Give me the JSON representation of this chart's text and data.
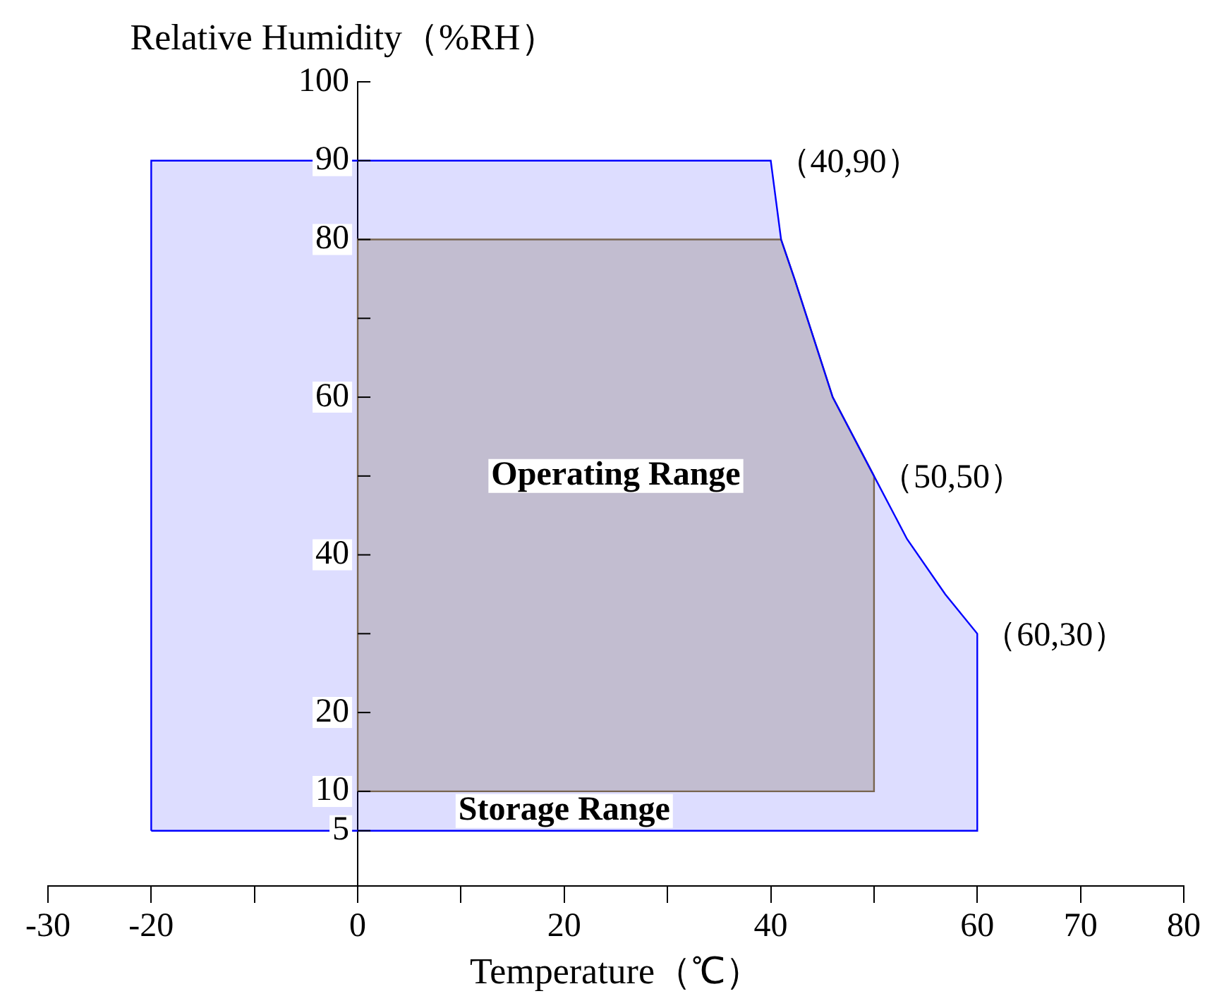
{
  "chart_data": {
    "type": "area",
    "xlabel": "Temperature（℃）",
    "ylabel": "Relative Humidity（%RH）",
    "series": [
      {
        "name": "Storage Range",
        "color": "#0000ff",
        "x": [
          -20,
          -20,
          40,
          41,
          42.3,
          46,
          50,
          53.2,
          56.9,
          60,
          60,
          -20
        ],
        "values": [
          5,
          90,
          90,
          80,
          75,
          60,
          50,
          42,
          35,
          30,
          5,
          5
        ]
      },
      {
        "name": "Operating Range",
        "color": "#8b7536",
        "x": [
          0,
          0,
          41,
          42.3,
          46,
          50,
          50,
          0
        ],
        "values": [
          10,
          80,
          80,
          75,
          60,
          50,
          10,
          10
        ]
      }
    ],
    "xlim": [
      -30,
      80
    ],
    "xticks": [
      -30,
      -20,
      {
        "value": -10,
        "label": null
      },
      0,
      {
        "value": 10,
        "label": null
      },
      20,
      {
        "value": 30,
        "label": null
      },
      40,
      {
        "value": 50,
        "label": null
      },
      60,
      70,
      80
    ],
    "ylim": [
      -2,
      100
    ],
    "yticks": [
      5,
      10,
      20,
      {
        "value": 30,
        "label": null
      },
      40,
      {
        "value": 50,
        "label": null
      },
      60,
      {
        "value": 70,
        "label": null
      },
      80,
      90,
      100
    ],
    "annotations": [
      {
        "text": "（40,90）",
        "x": 40,
        "y": 90
      },
      {
        "text": "（50,50）",
        "x": 50,
        "y": 50
      },
      {
        "text": "（60,30）",
        "x": 60,
        "y": 30
      }
    ],
    "grid": false,
    "legend": false
  }
}
